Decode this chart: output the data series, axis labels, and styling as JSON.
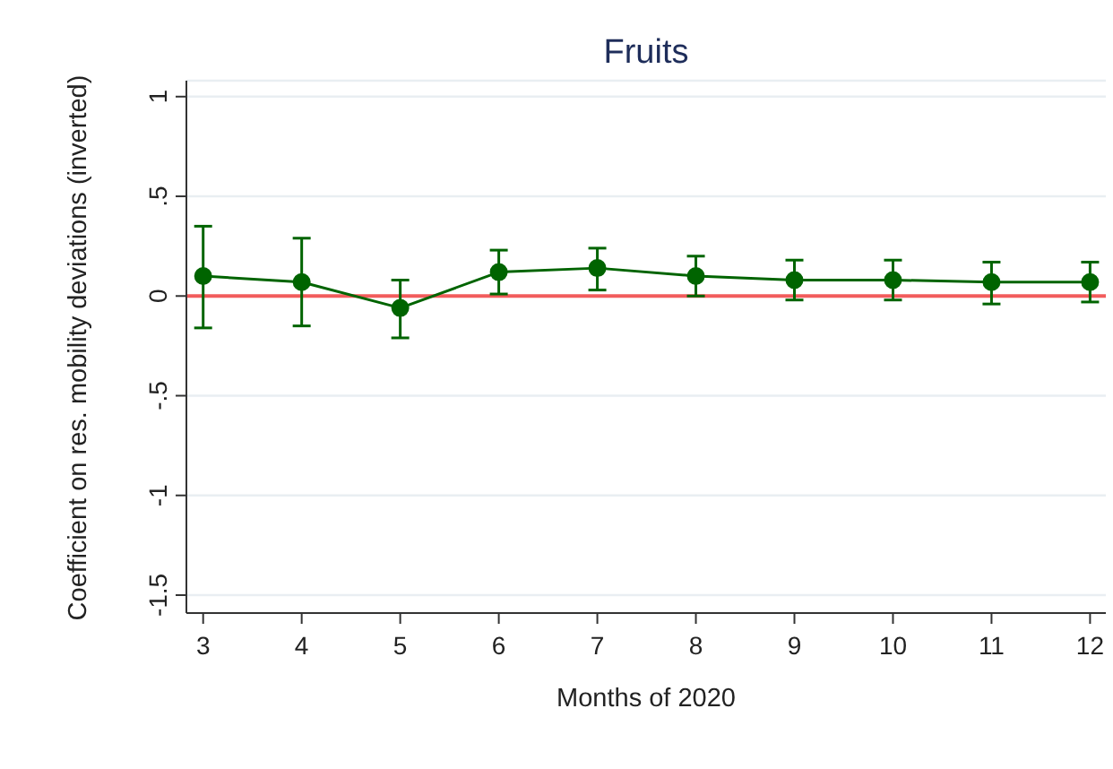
{
  "chart_data": {
    "type": "line",
    "title": "Fruits",
    "xlabel": "Months of 2020",
    "ylabel": "Coefficient on res. mobility deviations (inverted)",
    "x": [
      3,
      4,
      5,
      6,
      7,
      8,
      9,
      10,
      11,
      12
    ],
    "series": [
      {
        "color": "#006400",
        "values": [
          0.1,
          0.07,
          -0.06,
          0.12,
          0.14,
          0.1,
          0.08,
          0.08,
          0.07,
          0.07
        ],
        "errors": [
          [
            -0.16,
            0.35
          ],
          [
            -0.15,
            0.29
          ],
          [
            -0.21,
            0.08
          ],
          [
            0.01,
            0.23
          ],
          [
            0.03,
            0.24
          ],
          [
            0.0,
            0.2
          ],
          [
            -0.02,
            0.18
          ],
          [
            -0.02,
            0.18
          ],
          [
            -0.04,
            0.17
          ],
          [
            -0.03,
            0.17
          ]
        ]
      }
    ],
    "xlim": [
      2.83,
      12.16
    ],
    "xticks": [
      3,
      4,
      5,
      6,
      7,
      8,
      9,
      10,
      11,
      12
    ],
    "ylim": [
      -1.59,
      1.08
    ],
    "yticks": [
      -1.5,
      -1,
      {
        "value": -0.5,
        "label": "-.5"
      },
      0,
      {
        "value": 0.5,
        "label": ".5"
      },
      1
    ],
    "grid": "y",
    "marker": "circle",
    "line_style": "solid",
    "ref_lines": [
      {
        "axis": "y",
        "value": 0,
        "color": "#f25c5c"
      }
    ]
  }
}
